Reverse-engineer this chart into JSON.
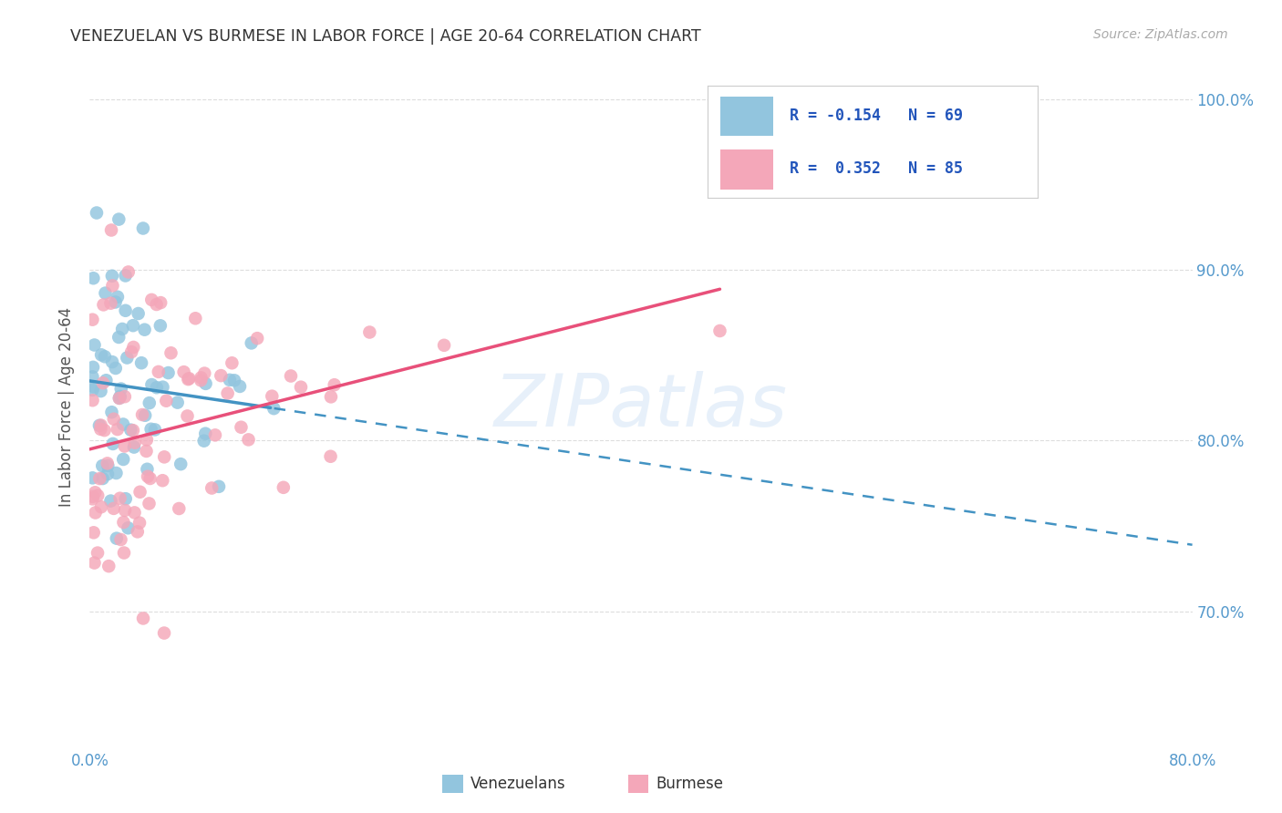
{
  "title": "VENEZUELAN VS BURMESE IN LABOR FORCE | AGE 20-64 CORRELATION CHART",
  "source": "Source: ZipAtlas.com",
  "ylabel": "In Labor Force | Age 20-64",
  "xlim": [
    0.0,
    0.8
  ],
  "ylim": [
    0.62,
    1.02
  ],
  "yticks": [
    0.7,
    0.8,
    0.9,
    1.0
  ],
  "ytick_labels": [
    "70.0%",
    "80.0%",
    "90.0%",
    "100.0%"
  ],
  "xticks": [
    0.0,
    0.1,
    0.2,
    0.3,
    0.4,
    0.5,
    0.6,
    0.7,
    0.8
  ],
  "xtick_labels": [
    "0.0%",
    "",
    "",
    "",
    "",
    "",
    "",
    "",
    "80.0%"
  ],
  "watermark": "ZIPatlas",
  "blue_color": "#92C5DE",
  "pink_color": "#F4A7B9",
  "blue_line_color": "#4393C3",
  "pink_line_color": "#E8507A",
  "tick_color": "#5599CC",
  "R_blue": -0.154,
  "N_blue": 69,
  "R_pink": 0.352,
  "N_pink": 85,
  "legend_text_color": "#2255BB"
}
